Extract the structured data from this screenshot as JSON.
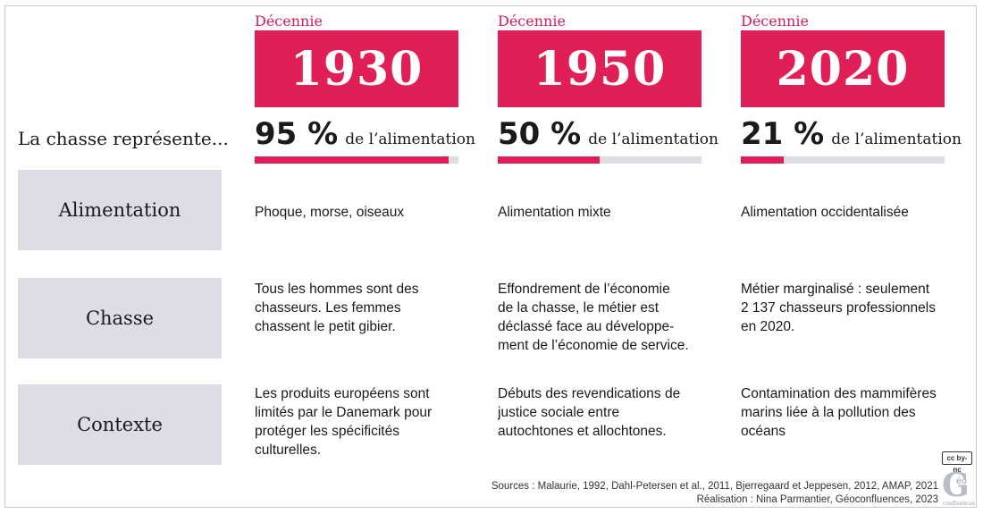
{
  "intro": "La chasse représente...",
  "decades": [
    {
      "label": "Décennie",
      "year": "1930",
      "pct_text": "95 %",
      "pct_value": 95,
      "pct_suffix": "de l’alimentation",
      "alimentation": "Phoque, morse, oiseaux",
      "chasse": [
        "Tous les hommes sont des",
        "chasseurs. Les femmes",
        "chassent le petit gibier."
      ],
      "contexte": [
        "Les produits européens sont",
        "limités par le Danemark pour",
        "protéger les spécificités",
        "culturelles."
      ]
    },
    {
      "label": "Décennie",
      "year": "1950",
      "pct_text": "50 %",
      "pct_value": 50,
      "pct_suffix": "de l’alimentation",
      "alimentation": "Alimentation mixte",
      "chasse": [
        "Effondrement de l’économie",
        "de la chasse, le métier est",
        "déclassé face au développe-",
        "ment de l’économie de service."
      ],
      "contexte": [
        "Débuts des revendications de",
        "justice sociale entre",
        "autochtones et allochtones."
      ]
    },
    {
      "label": "Décennie",
      "year": "2020",
      "pct_text": "21 %",
      "pct_value": 21,
      "pct_suffix": "de l’alimentation",
      "alimentation": "Alimentation occidentalisée",
      "chasse": [
        "Métier marginalisé : seulement",
        "2 137 chasseurs professionnels",
        "en 2020."
      ],
      "contexte": [
        "Contamination des mammifères",
        "marins liée à la pollution des",
        "océans"
      ]
    }
  ],
  "rows": {
    "alimentation": "Alimentation",
    "chasse": "Chasse",
    "contexte": "Contexte"
  },
  "credits": {
    "sources": "Sources : Malaurie, 1992, Dahl-Petersen et al., 2011, Bjerregaard et Jeppesen, 2012, AMAP, 2021",
    "realisation": "Réalisation : Nina Parmantier, Géoconfluences, 2023"
  },
  "license_badge": "cc by-nc",
  "logo": {
    "letter": "G",
    "small": "éo",
    "sub": "confluences"
  },
  "colors": {
    "accent": "#e01f56",
    "track": "#dedde6",
    "label_bg": "#dedde6"
  }
}
